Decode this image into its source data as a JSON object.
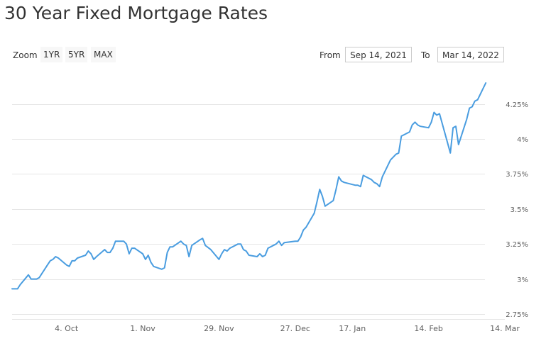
{
  "page": {
    "title": "30 Year Fixed Mortgage Rates"
  },
  "toolbar": {
    "zoom_label": "Zoom",
    "zoom_buttons": [
      "1YR",
      "5YR",
      "MAX"
    ],
    "from_label": "From",
    "from_value": "Sep 14, 2021",
    "to_label": "To",
    "to_value": "Mar 14, 2022"
  },
  "colors": {
    "line": "#4a9de0"
  },
  "chart_data": {
    "type": "line",
    "title": "30 Year Fixed Mortgage Rates",
    "xlabel": "",
    "ylabel": "",
    "x_range": [
      "2021-09-14",
      "2022-03-14"
    ],
    "ylim": [
      2.75,
      4.4
    ],
    "grid": true,
    "y_ticks": [
      2.75,
      3,
      3.25,
      3.5,
      3.75,
      4,
      4.25
    ],
    "y_tick_labels": [
      "2.75%",
      "3%",
      "3.25%",
      "3.5%",
      "3.75%",
      "4%",
      "4.25%"
    ],
    "x_ticks": [
      "2021-10-04",
      "2021-11-01",
      "2021-11-29",
      "2021-12-27",
      "2022-01-17",
      "2022-02-14",
      "2022-03-14"
    ],
    "x_tick_labels": [
      "4. Oct",
      "1. Nov",
      "29. Nov",
      "27. Dec",
      "17. Jan",
      "14. Feb",
      "14. Mar"
    ],
    "series": [
      {
        "points": [
          [
            "2021-09-14",
            2.93
          ],
          [
            "2021-09-15",
            2.93
          ],
          [
            "2021-09-16",
            2.93
          ],
          [
            "2021-09-17",
            2.96
          ],
          [
            "2021-09-20",
            3.03
          ],
          [
            "2021-09-21",
            3.0
          ],
          [
            "2021-09-22",
            3.0
          ],
          [
            "2021-09-23",
            3.0
          ],
          [
            "2021-09-24",
            3.01
          ],
          [
            "2021-09-27",
            3.1
          ],
          [
            "2021-09-28",
            3.13
          ],
          [
            "2021-09-29",
            3.14
          ],
          [
            "2021-09-30",
            3.16
          ],
          [
            "2021-10-01",
            3.15
          ],
          [
            "2021-10-04",
            3.1
          ],
          [
            "2021-10-05",
            3.09
          ],
          [
            "2021-10-06",
            3.13
          ],
          [
            "2021-10-07",
            3.13
          ],
          [
            "2021-10-08",
            3.15
          ],
          [
            "2021-10-11",
            3.17
          ],
          [
            "2021-10-12",
            3.2
          ],
          [
            "2021-10-13",
            3.18
          ],
          [
            "2021-10-14",
            3.14
          ],
          [
            "2021-10-15",
            3.16
          ],
          [
            "2021-10-18",
            3.21
          ],
          [
            "2021-10-19",
            3.19
          ],
          [
            "2021-10-20",
            3.19
          ],
          [
            "2021-10-21",
            3.22
          ],
          [
            "2021-10-22",
            3.27
          ],
          [
            "2021-10-25",
            3.27
          ],
          [
            "2021-10-26",
            3.25
          ],
          [
            "2021-10-27",
            3.18
          ],
          [
            "2021-10-28",
            3.22
          ],
          [
            "2021-10-29",
            3.22
          ],
          [
            "2021-11-01",
            3.18
          ],
          [
            "2021-11-02",
            3.14
          ],
          [
            "2021-11-03",
            3.17
          ],
          [
            "2021-11-04",
            3.12
          ],
          [
            "2021-11-05",
            3.09
          ],
          [
            "2021-11-08",
            3.07
          ],
          [
            "2021-11-09",
            3.08
          ],
          [
            "2021-11-10",
            3.19
          ],
          [
            "2021-11-11",
            3.23
          ],
          [
            "2021-11-12",
            3.23
          ],
          [
            "2021-11-15",
            3.27
          ],
          [
            "2021-11-16",
            3.25
          ],
          [
            "2021-11-17",
            3.24
          ],
          [
            "2021-11-18",
            3.16
          ],
          [
            "2021-11-19",
            3.24
          ],
          [
            "2021-11-22",
            3.28
          ],
          [
            "2021-11-23",
            3.29
          ],
          [
            "2021-11-24",
            3.24
          ],
          [
            "2021-11-26",
            3.21
          ],
          [
            "2021-11-29",
            3.14
          ],
          [
            "2021-11-30",
            3.18
          ],
          [
            "2021-12-01",
            3.21
          ],
          [
            "2021-12-02",
            3.2
          ],
          [
            "2021-12-03",
            3.22
          ],
          [
            "2021-12-06",
            3.25
          ],
          [
            "2021-12-07",
            3.25
          ],
          [
            "2021-12-08",
            3.21
          ],
          [
            "2021-12-09",
            3.2
          ],
          [
            "2021-12-10",
            3.17
          ],
          [
            "2021-12-13",
            3.16
          ],
          [
            "2021-12-14",
            3.18
          ],
          [
            "2021-12-15",
            3.16
          ],
          [
            "2021-12-16",
            3.17
          ],
          [
            "2021-12-17",
            3.22
          ],
          [
            "2021-12-20",
            3.25
          ],
          [
            "2021-12-21",
            3.27
          ],
          [
            "2021-12-22",
            3.24
          ],
          [
            "2021-12-23",
            3.26
          ],
          [
            "2021-12-27",
            3.27
          ],
          [
            "2021-12-28",
            3.27
          ],
          [
            "2021-12-29",
            3.3
          ],
          [
            "2021-12-30",
            3.35
          ],
          [
            "2021-12-31",
            3.37
          ],
          [
            "2022-01-03",
            3.47
          ],
          [
            "2022-01-04",
            3.55
          ],
          [
            "2022-01-05",
            3.64
          ],
          [
            "2022-01-06",
            3.59
          ],
          [
            "2022-01-07",
            3.52
          ],
          [
            "2022-01-10",
            3.56
          ],
          [
            "2022-01-11",
            3.64
          ],
          [
            "2022-01-12",
            3.73
          ],
          [
            "2022-01-13",
            3.7
          ],
          [
            "2022-01-14",
            3.69
          ],
          [
            "2022-01-18",
            3.67
          ],
          [
            "2022-01-19",
            3.67
          ],
          [
            "2022-01-20",
            3.66
          ],
          [
            "2022-01-21",
            3.74
          ],
          [
            "2022-01-24",
            3.71
          ],
          [
            "2022-01-25",
            3.69
          ],
          [
            "2022-01-26",
            3.68
          ],
          [
            "2022-01-27",
            3.66
          ],
          [
            "2022-01-28",
            3.73
          ],
          [
            "2022-01-31",
            3.85
          ],
          [
            "2022-02-01",
            3.87
          ],
          [
            "2022-02-02",
            3.89
          ],
          [
            "2022-02-03",
            3.9
          ],
          [
            "2022-02-04",
            4.02
          ],
          [
            "2022-02-07",
            4.05
          ],
          [
            "2022-02-08",
            4.1
          ],
          [
            "2022-02-09",
            4.12
          ],
          [
            "2022-02-10",
            4.1
          ],
          [
            "2022-02-11",
            4.09
          ],
          [
            "2022-02-14",
            4.08
          ],
          [
            "2022-02-15",
            4.12
          ],
          [
            "2022-02-16",
            4.19
          ],
          [
            "2022-02-17",
            4.17
          ],
          [
            "2022-02-18",
            4.18
          ],
          [
            "2022-02-22",
            3.9
          ],
          [
            "2022-02-23",
            4.08
          ],
          [
            "2022-02-24",
            4.09
          ],
          [
            "2022-02-25",
            3.96
          ],
          [
            "2022-02-28",
            4.14
          ],
          [
            "2022-03-01",
            4.22
          ],
          [
            "2022-03-02",
            4.23
          ],
          [
            "2022-03-03",
            4.27
          ],
          [
            "2022-03-04",
            4.28
          ],
          [
            "2022-03-07",
            4.4
          ]
        ]
      }
    ]
  }
}
